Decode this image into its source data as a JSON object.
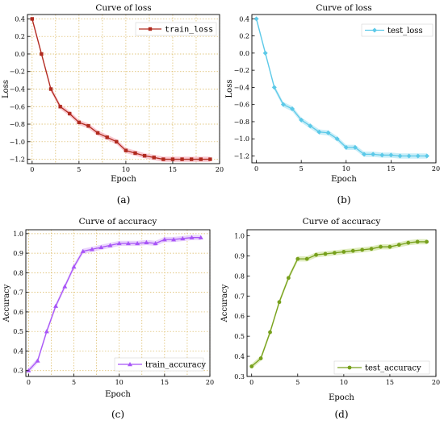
{
  "chart_data": [
    {
      "type": "line",
      "title": "Curve of loss",
      "xlabel": "Epoch",
      "ylabel": "Loss",
      "xlim": [
        -0.5,
        20
      ],
      "ylim": [
        -1.25,
        0.45
      ],
      "xticks": [
        0,
        5,
        10,
        15,
        20
      ],
      "yticks": [
        0.4,
        0.2,
        0.0,
        -0.2,
        -0.4,
        -0.6,
        -0.8,
        -1.0,
        -1.2
      ],
      "ytick_labels": [
        "0.4",
        "0.2",
        "0.0",
        "−0.2",
        "−0.4",
        "−0.6",
        "−0.8",
        "−1.0",
        "−1.2"
      ],
      "grid": true,
      "grid_style": "dotted",
      "legend_position": "top-right",
      "marker": "square",
      "color": "#b02a1e",
      "band_color": "#f7b7c2",
      "sublabel": "(a)",
      "series": [
        {
          "name": "train_loss",
          "x": [
            0,
            1,
            2,
            3,
            4,
            5,
            6,
            7,
            8,
            9,
            10,
            11,
            12,
            13,
            14,
            15,
            16,
            17,
            18,
            19
          ],
          "values": [
            0.4,
            0.0,
            -0.4,
            -0.6,
            -0.68,
            -0.78,
            -0.82,
            -0.9,
            -0.95,
            -1.0,
            -1.1,
            -1.13,
            -1.16,
            -1.18,
            -1.2,
            -1.2,
            -1.2,
            -1.2,
            -1.2,
            -1.2
          ]
        }
      ]
    },
    {
      "type": "line",
      "title": "Curve of loss",
      "xlabel": "Epoch",
      "ylabel": "Loss",
      "xlim": [
        -0.5,
        20
      ],
      "ylim": [
        -1.28,
        0.45
      ],
      "xticks": [
        0,
        5,
        10,
        15,
        20
      ],
      "yticks": [
        0.4,
        0.2,
        0.0,
        -0.2,
        -0.4,
        -0.6,
        -0.8,
        -1.0,
        -1.2
      ],
      "ytick_labels": [
        "0.4",
        "0.2",
        "0.0",
        "−0.2",
        "−0.4",
        "−0.6",
        "−0.8",
        "−1.0",
        "−1.2"
      ],
      "grid": false,
      "legend_position": "top-right",
      "marker": "diamond",
      "color": "#5cc9e8",
      "band_color": "#b8e8f5",
      "sublabel": "(b)",
      "series": [
        {
          "name": "test_loss",
          "x": [
            0,
            1,
            2,
            3,
            4,
            5,
            6,
            7,
            8,
            9,
            10,
            11,
            12,
            13,
            14,
            15,
            16,
            17,
            18,
            19
          ],
          "values": [
            0.4,
            0.0,
            -0.4,
            -0.6,
            -0.65,
            -0.78,
            -0.85,
            -0.92,
            -0.93,
            -1.0,
            -1.1,
            -1.1,
            -1.18,
            -1.18,
            -1.19,
            -1.19,
            -1.2,
            -1.2,
            -1.2,
            -1.2
          ]
        }
      ]
    },
    {
      "type": "line",
      "title": "Curve of accuracy",
      "xlabel": "Epoch",
      "ylabel": "Accuracy",
      "xlim": [
        -0.3,
        20
      ],
      "ylim": [
        0.27,
        1.02
      ],
      "xticks": [
        0,
        5,
        10,
        15,
        20
      ],
      "yticks": [
        0.3,
        0.4,
        0.5,
        0.6,
        0.7,
        0.8,
        0.9,
        1.0
      ],
      "ytick_labels": [
        "0.3",
        "0.4",
        "0.5",
        "0.6",
        "0.7",
        "0.8",
        "0.9",
        "1.0"
      ],
      "grid": true,
      "grid_style": "dotted",
      "legend_position": "bottom-right",
      "marker": "triangle",
      "color": "#a855f7",
      "band_color": "#e3c7fb",
      "sublabel": "(c)",
      "series": [
        {
          "name": "train_accuracy",
          "x": [
            0,
            1,
            2,
            3,
            4,
            5,
            6,
            7,
            8,
            9,
            10,
            11,
            12,
            13,
            14,
            15,
            16,
            17,
            18,
            19
          ],
          "values": [
            0.3,
            0.35,
            0.5,
            0.63,
            0.73,
            0.83,
            0.91,
            0.92,
            0.93,
            0.94,
            0.95,
            0.95,
            0.95,
            0.955,
            0.95,
            0.97,
            0.97,
            0.975,
            0.98,
            0.98
          ]
        }
      ]
    },
    {
      "type": "line",
      "title": "Curve of accuracy",
      "xlabel": "Epoch",
      "ylabel": "Accuracy",
      "xlim": [
        -0.5,
        20
      ],
      "ylim": [
        0.3,
        1.03
      ],
      "xticks": [
        0,
        5,
        10,
        15,
        20
      ],
      "yticks": [
        0.3,
        0.4,
        0.5,
        0.6,
        0.7,
        0.8,
        0.9,
        1.0
      ],
      "ytick_labels": [
        "0.3",
        "0.4",
        "0.5",
        "0.6",
        "0.7",
        "0.8",
        "0.9",
        "1.0"
      ],
      "grid": false,
      "legend_position": "bottom-right",
      "marker": "circle",
      "color": "#77a01c",
      "band_color": "#d4e6a8",
      "sublabel": "(d)",
      "series": [
        {
          "name": "test_accuracy",
          "x": [
            0,
            1,
            2,
            3,
            4,
            5,
            6,
            7,
            8,
            9,
            10,
            11,
            12,
            13,
            14,
            15,
            16,
            17,
            18,
            19
          ],
          "values": [
            0.35,
            0.39,
            0.52,
            0.67,
            0.79,
            0.885,
            0.885,
            0.905,
            0.91,
            0.915,
            0.92,
            0.925,
            0.93,
            0.935,
            0.945,
            0.945,
            0.955,
            0.965,
            0.97,
            0.97
          ]
        }
      ]
    }
  ]
}
